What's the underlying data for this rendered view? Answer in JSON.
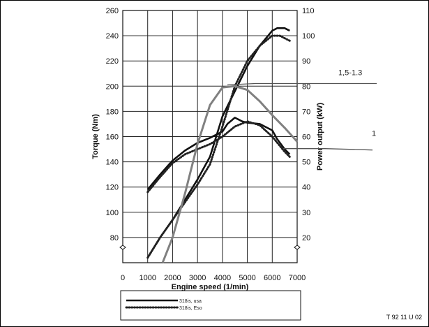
{
  "chart_data": {
    "type": "line",
    "xlabel": "Engine speed (1/min)",
    "ylabel_left": "Torque (Nm)",
    "ylabel_right": "Power output (kW)",
    "xlim": [
      0,
      7000
    ],
    "ylim_left": [
      60,
      260
    ],
    "ylim_right": [
      10,
      110
    ],
    "x_ticks": [
      "0",
      "1000",
      "2000",
      "3000",
      "4000",
      "5000",
      "6000",
      "7000"
    ],
    "y_ticks_left": [
      "80",
      "100",
      "120",
      "140",
      "160",
      "180",
      "200",
      "220",
      "240",
      "260"
    ],
    "y_ticks_right": [
      "20",
      "30",
      "40",
      "50",
      "60",
      "70",
      "80",
      "90",
      "100",
      "110"
    ],
    "grid": true,
    "series": [
      {
        "name": "318is, usa",
        "style": "solid",
        "color": "#111111",
        "torque": {
          "x": [
            1000,
            1500,
            2000,
            2500,
            3000,
            3500,
            4000,
            4200,
            4500,
            4800,
            5000,
            5500,
            6000,
            6200,
            6500,
            6700
          ],
          "y": [
            118,
            130,
            141,
            149,
            155,
            159,
            164,
            170,
            175,
            172,
            171,
            170,
            165,
            158,
            150,
            146
          ]
        },
        "power": {
          "x": [
            1000,
            1500,
            2000,
            2500,
            3000,
            3500,
            4000,
            4500,
            5000,
            5500,
            6000,
            6200,
            6500,
            6700
          ],
          "y": [
            12,
            20,
            27,
            35,
            43,
            52,
            68,
            78,
            88,
            96,
            102,
            103,
            103,
            102
          ]
        }
      },
      {
        "name": "318is, Eso",
        "style": "dotted",
        "color": "#222222",
        "torque": {
          "x": [
            1000,
            1500,
            2000,
            2500,
            3000,
            3500,
            4000,
            4500,
            5000,
            5500,
            6000,
            6500,
            6700
          ],
          "y": [
            116,
            128,
            139,
            146,
            150,
            154,
            160,
            168,
            172,
            169,
            160,
            148,
            144
          ]
        },
        "power": {
          "x": [
            1000,
            1500,
            2000,
            2500,
            3000,
            3500,
            4000,
            4500,
            5000,
            5500,
            6000,
            6300,
            6500,
            6700
          ],
          "y": [
            12,
            20,
            27,
            34,
            41,
            49,
            64,
            80,
            90,
            96,
            100,
            100,
            99,
            98
          ]
        }
      },
      {
        "name": "",
        "style": "solid",
        "color": "#808080",
        "role": "annotation overlay (left scale)",
        "x": [
          1600,
          2000,
          2500,
          3000,
          3500,
          4000,
          4500,
          5000,
          5500,
          6000,
          6500,
          7000
        ],
        "y": [
          60,
          80,
          115,
          154,
          185,
          199,
          200,
          197,
          188,
          177,
          167,
          156
        ]
      }
    ],
    "annotations": [
      {
        "text": "1,5-1.3",
        "at": [
          4200,
          201
        ]
      },
      {
        "text": "1",
        "at": [
          7000,
          166
        ]
      }
    ],
    "legend_position": "bottom-center"
  },
  "figure_id": "T 92 11 U 02"
}
